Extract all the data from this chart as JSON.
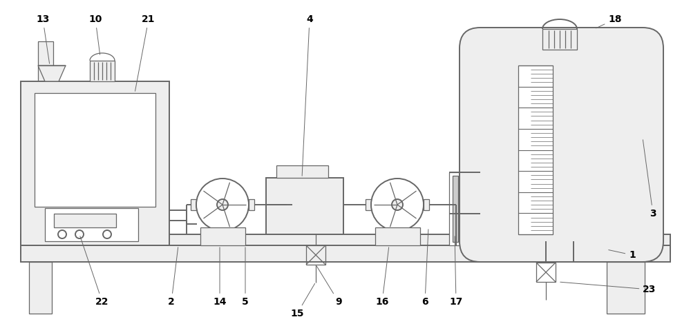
{
  "fig_w": 10.0,
  "fig_h": 4.73,
  "dpi": 100,
  "line_color": "#666666",
  "fill_light": "#eeeeee",
  "fill_white": "#ffffff",
  "lw_main": 1.4,
  "lw_thin": 0.9,
  "label_fs": 10,
  "xlim": [
    0,
    1000
  ],
  "ylim": [
    0,
    473
  ]
}
